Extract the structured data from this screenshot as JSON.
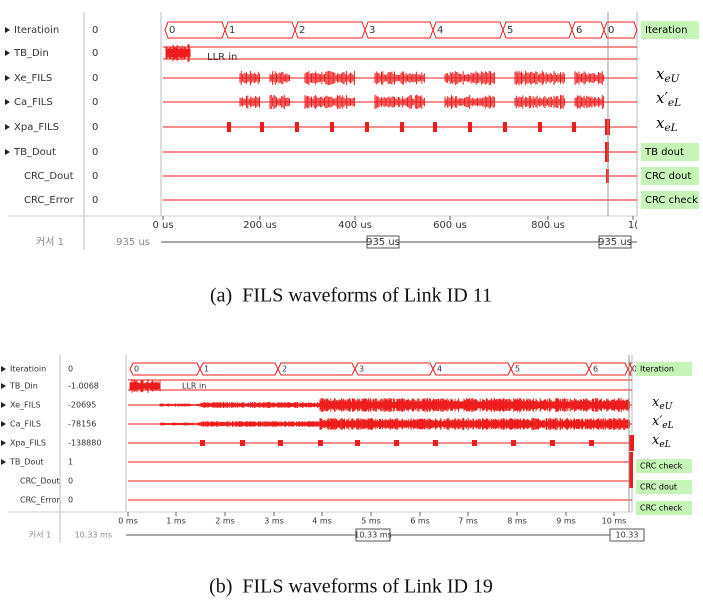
{
  "panels": [
    {
      "signals": [
        {
          "name": "Iteratioin",
          "value": "0"
        },
        {
          "name": "TB_Din",
          "value": "0"
        },
        {
          "name": "Xe_FILS",
          "value": "0"
        },
        {
          "name": "Ca_FILS",
          "value": "0"
        },
        {
          "name": "Xpa_FILS",
          "value": "0"
        },
        {
          "name": "TB_Dout",
          "value": "0"
        },
        {
          "name": "CRC_Dout",
          "value": "0"
        },
        {
          "name": "CRC_Error",
          "value": "0"
        }
      ],
      "iterations": [
        "0",
        "1",
        "2",
        "3",
        "4",
        "5",
        "6",
        "0"
      ],
      "llr_label": "LLR in",
      "axis_ticks": [
        "0 us",
        "200 us",
        "400 us",
        "600 us",
        "800 us",
        "1("
      ],
      "cursor_name": "커서 1",
      "cursor_time": "935 us",
      "cursor_box_mid": "935 us",
      "cursor_box_right": "935 us",
      "annotations": [
        "Iteration",
        "TB dout",
        "CRC dout",
        "CRC check"
      ],
      "math": [
        {
          "base": "x",
          "sub": "eU"
        },
        {
          "base": "x′",
          "sub": "eL"
        },
        {
          "base": "x",
          "sub": "eL"
        }
      ],
      "caption": "(a)  FILS waveforms of Link ID 11"
    },
    {
      "signals": [
        {
          "name": "Iteratioin",
          "value": "0"
        },
        {
          "name": "TB_Din",
          "value": "-1.0068"
        },
        {
          "name": "Xe_FILS",
          "value": "-20695"
        },
        {
          "name": "Ca_FILS",
          "value": "-78156"
        },
        {
          "name": "Xpa_FILS",
          "value": "-138880"
        },
        {
          "name": "TB_Dout",
          "value": "1"
        },
        {
          "name": "CRC_Dout",
          "value": "0"
        },
        {
          "name": "CRC_Error",
          "value": "0"
        }
      ],
      "iterations": [
        "0",
        "1",
        "2",
        "3",
        "4",
        "5",
        "6",
        "0"
      ],
      "llr_label": "LLR in",
      "axis_ticks": [
        "0 ms",
        "1 ms",
        "2 ms",
        "3 ms",
        "4 ms",
        "5 ms",
        "6 ms",
        "7 ms",
        "8 ms",
        "9 ms",
        "10 ms"
      ],
      "cursor_name": "커서 1",
      "cursor_time": "10.33 ms",
      "cursor_box_mid": "10.33 ms",
      "cursor_box_right": "10.33",
      "annotations": [
        "Iteration",
        "CRC check",
        "CRC dout",
        "CRC check"
      ],
      "math": [
        {
          "base": "x",
          "sub": "eU"
        },
        {
          "base": "x′",
          "sub": "eL"
        },
        {
          "base": "x",
          "sub": "eL"
        }
      ],
      "caption": "(b)  FILS waveforms of Link ID 19"
    }
  ]
}
